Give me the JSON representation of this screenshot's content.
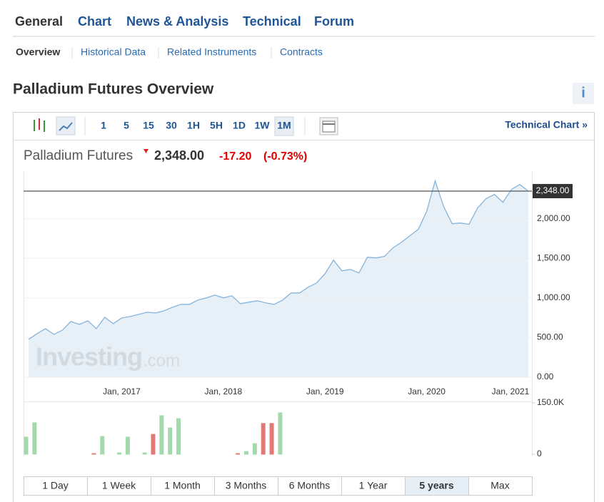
{
  "tabs": {
    "items": [
      "General",
      "Chart",
      "News & Analysis",
      "Technical",
      "Forum"
    ],
    "active": 0
  },
  "subtabs": {
    "items": [
      "Overview",
      "Historical Data",
      "Related Instruments",
      "Contracts"
    ],
    "active": 0
  },
  "title": "Palladium Futures Overview",
  "info_icon": "i",
  "toolbar": {
    "intervals": [
      "1",
      "5",
      "15",
      "30",
      "1H",
      "5H",
      "1D",
      "1W",
      "1M"
    ],
    "active": 8,
    "link": "Technical Chart »"
  },
  "quote": {
    "name": "Palladium Futures",
    "price": "2,348.00",
    "change": "-17.20",
    "change_pct": "(-0.73%)"
  },
  "chart_data": {
    "type": "area",
    "categories": [
      null,
      null,
      null,
      null,
      null,
      null,
      null,
      null,
      null,
      null,
      null,
      "Jan, 2017",
      null,
      null,
      null,
      null,
      null,
      null,
      null,
      null,
      null,
      null,
      null,
      "Jan, 2018",
      null,
      null,
      null,
      null,
      null,
      null,
      null,
      null,
      null,
      null,
      null,
      "Jan, 2019",
      null,
      null,
      null,
      null,
      null,
      null,
      null,
      null,
      null,
      null,
      null,
      "Jan, 2020",
      null,
      null,
      null,
      null,
      null,
      null,
      null,
      null,
      null,
      null,
      null,
      "Jan, 2021"
    ],
    "values": [
      478,
      550,
      613,
      541,
      595,
      703,
      667,
      712,
      613,
      757,
      676,
      748,
      766,
      793,
      820,
      811,
      838,
      883,
      919,
      919,
      973,
      1000,
      1036,
      1000,
      1027,
      928,
      946,
      964,
      937,
      919,
      973,
      1063,
      1063,
      1135,
      1189,
      1306,
      1477,
      1342,
      1360,
      1315,
      1514,
      1505,
      1523,
      1631,
      1700,
      1784,
      1865,
      2090,
      2477,
      2153,
      1937,
      1946,
      1928,
      2135,
      2252,
      2306,
      2207,
      2369,
      2432,
      2348
    ],
    "color": "#86b4dc",
    "fill": "#e4edf6",
    "ylim": [
      0,
      2600
    ],
    "yticks": [
      {
        "value": 0,
        "label": "0.00"
      },
      {
        "value": 500,
        "label": "500.00"
      },
      {
        "value": 1000,
        "label": "1,000.00"
      },
      {
        "value": 1500,
        "label": "1,500.00"
      },
      {
        "value": 2000,
        "label": "2,000.00"
      }
    ],
    "current_price": {
      "value": 2348,
      "label": "2,348.00"
    },
    "watermark": [
      "Investing",
      ".com"
    ],
    "volume": {
      "values": [
        50000,
        92000,
        null,
        null,
        null,
        null,
        null,
        null,
        2000,
        52000,
        null,
        4000,
        50000,
        null,
        4000,
        58000,
        112500,
        77000,
        104000,
        null,
        null,
        null,
        null,
        null,
        null,
        2000,
        8000,
        31000,
        90000,
        90000,
        121000,
        null,
        null,
        null,
        null,
        null,
        null,
        null,
        null,
        null,
        null,
        null,
        null,
        null,
        null,
        null,
        null,
        null,
        null,
        null,
        null,
        null,
        null,
        null,
        null,
        null,
        null,
        null,
        null,
        null
      ],
      "colors": [
        "#a3d9ad",
        "#a3d9ad",
        null,
        null,
        null,
        null,
        null,
        null,
        "#e07a77",
        "#a3d9ad",
        null,
        "#a3d9ad",
        "#a3d9ad",
        null,
        "#a3d9ad",
        "#e07a77",
        "#a3d9ad",
        "#a3d9ad",
        "#a3d9ad",
        null,
        null,
        null,
        null,
        null,
        null,
        "#e07a77",
        "#a3d9ad",
        "#a3d9ad",
        "#e07a77",
        "#e07a77",
        "#a3d9ad",
        null,
        null,
        null,
        null,
        null,
        null,
        null,
        null,
        null,
        null,
        null,
        null,
        null,
        null,
        null,
        null,
        null,
        null,
        null,
        null,
        null,
        null,
        null,
        null,
        null,
        null,
        null,
        null,
        null
      ],
      "ylim": [
        0,
        150000
      ],
      "yticks": [
        {
          "value": 0,
          "label": "0"
        },
        {
          "value": 150000,
          "label": "150.0K"
        }
      ]
    }
  },
  "ranges": {
    "items": [
      "1 Day",
      "1 Week",
      "1 Month",
      "3 Months",
      "6 Months",
      "1 Year",
      "5 years",
      "Max"
    ],
    "active": 6
  }
}
